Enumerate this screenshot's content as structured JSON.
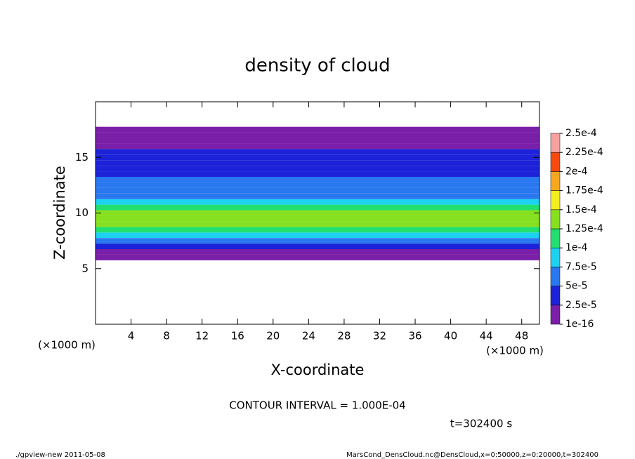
{
  "chart_data": {
    "type": "heatmap",
    "title": "density of cloud",
    "x_label": "X-coordinate",
    "y_label": "Z-coordinate",
    "x_units": "(×1000 m)",
    "y_units": "(×1000 m)",
    "xlim": [
      0,
      50
    ],
    "xticks": [
      4,
      8,
      12,
      16,
      20,
      24,
      28,
      32,
      36,
      40,
      44,
      48
    ],
    "ylim": [
      0,
      20
    ],
    "yticks": [
      5,
      10,
      15
    ],
    "z": [
      6,
      6.5,
      7,
      7.5,
      8,
      8.5,
      9,
      9.5,
      10,
      10.5,
      11,
      11.5,
      12,
      12.5,
      13,
      13.5,
      14,
      14.5,
      15,
      15.5,
      16,
      16.5,
      17,
      17.5
    ],
    "values": [
      1e-05,
      2e-05,
      4e-05,
      6.5e-05,
      9e-05,
      0.00011,
      0.00013,
      0.000135,
      0.00013,
      0.000115,
      9e-05,
      7e-05,
      6e-05,
      5.5e-05,
      5e-05,
      4.5e-05,
      4.5e-05,
      4e-05,
      3.5e-05,
      2.5e-05,
      1.5e-05,
      1e-05,
      5e-06,
      1e-06
    ],
    "colorbar": {
      "levels": [
        {
          "value": 1e-16,
          "label": "1e-16"
        },
        {
          "value": 2.5e-05,
          "label": "2.5e-5"
        },
        {
          "value": 5e-05,
          "label": "5e-5"
        },
        {
          "value": 7.5e-05,
          "label": "7.5e-5"
        },
        {
          "value": 0.0001,
          "label": "1e-4"
        },
        {
          "value": 0.000125,
          "label": "1.25e-4"
        },
        {
          "value": 0.00015,
          "label": "1.5e-4"
        },
        {
          "value": 0.000175,
          "label": "1.75e-4"
        },
        {
          "value": 0.0002,
          "label": "2e-4"
        },
        {
          "value": 0.000225,
          "label": "2.25e-4"
        },
        {
          "value": 0.00025,
          "label": "2.5e-4"
        }
      ],
      "colors": [
        "#7a1fa8",
        "#1c22d8",
        "#2a78f0",
        "#1cd2f0",
        "#22e070",
        "#86e020",
        "#f2ee20",
        "#f8a820",
        "#f84a10",
        "#f7a0a0"
      ]
    },
    "contour_note": "CONTOUR INTERVAL = 1.000E-04",
    "time_label": "t=302400 s",
    "footer_left": "./gpview-new  2011-05-08",
    "footer_right": "MarsCond_DensCloud.nc@DensCloud,x=0:50000,z=0:20000,t=302400"
  }
}
